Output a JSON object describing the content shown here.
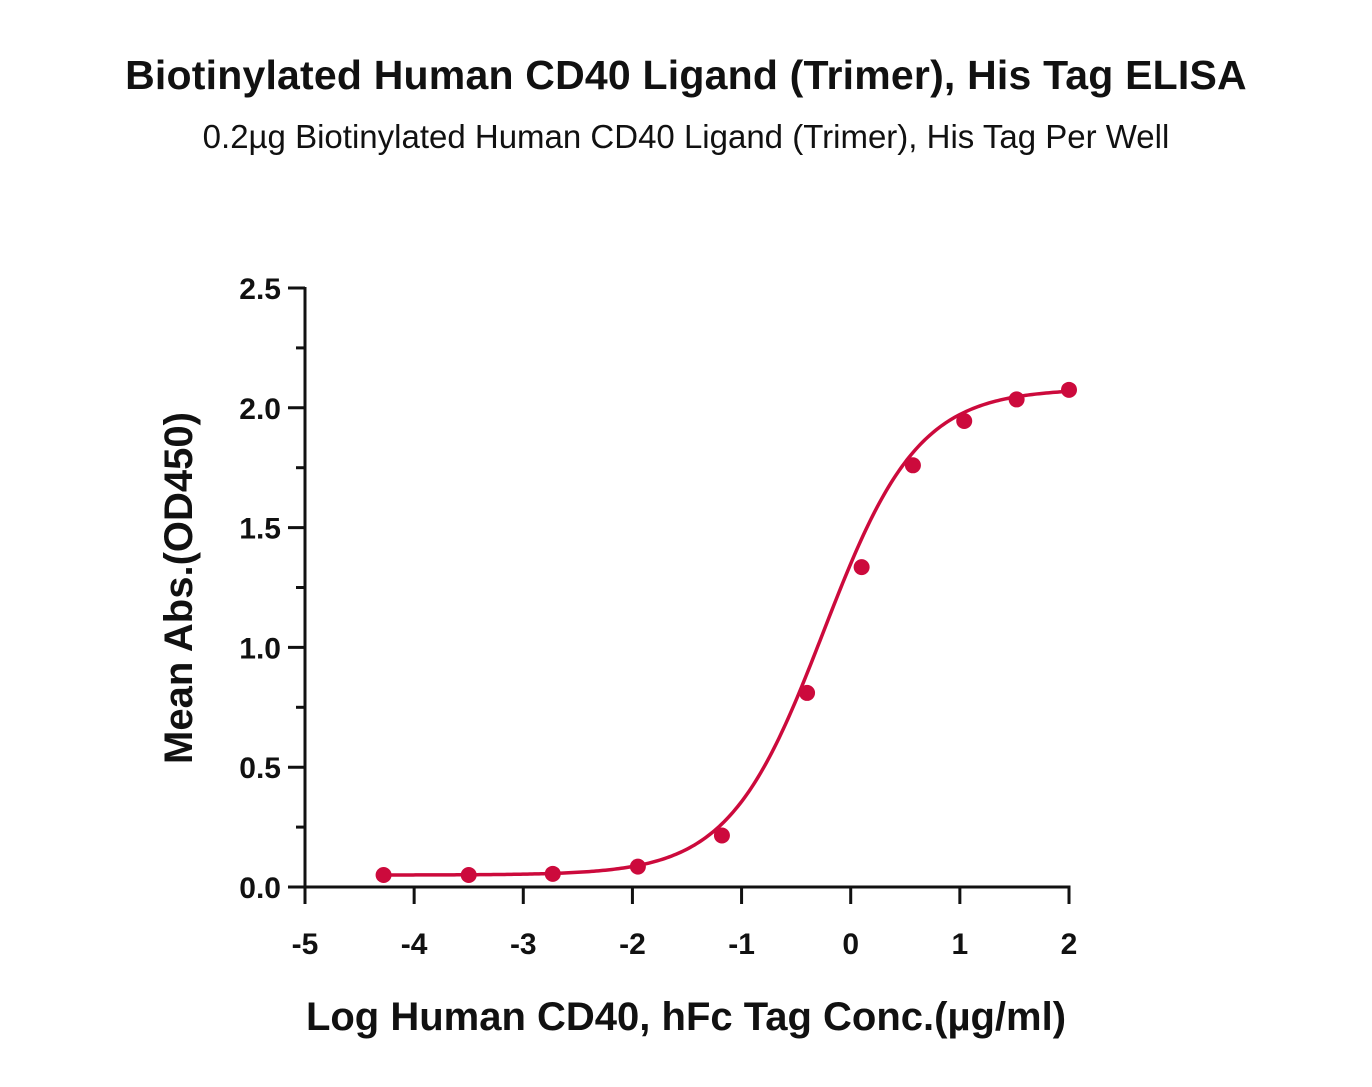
{
  "chart_data": {
    "type": "scatter",
    "title": "Biotinylated Human CD40 Ligand (Trimer), His Tag ELISA",
    "subtitle": "0.2µg Biotinylated Human CD40 Ligand (Trimer), His Tag Per Well",
    "xlabel": "Log Human CD40, hFc Tag Conc.(µg/ml)",
    "ylabel": "Mean Abs.(OD450)",
    "xlim": [
      -5,
      2
    ],
    "ylim": [
      0,
      2.5
    ],
    "x_ticks": [
      -5,
      -4,
      -3,
      -2,
      -1,
      0,
      1,
      2
    ],
    "x_tick_labels": [
      "-5",
      "-4",
      "-3",
      "-2",
      "-1",
      "0",
      "1",
      "2"
    ],
    "y_ticks": [
      0,
      0.5,
      1.0,
      1.5,
      2.0,
      2.5
    ],
    "y_tick_labels": [
      "0.0",
      "0.5",
      "1.0",
      "1.5",
      "2.0",
      "2.5"
    ],
    "grid": false,
    "series": [
      {
        "color": "#cc0a3c",
        "x": [
          -4.28,
          -3.5,
          -2.73,
          -1.95,
          -1.18,
          -0.4,
          0.1,
          0.57,
          1.04,
          1.52,
          2.0
        ],
        "values": [
          0.05,
          0.05,
          0.055,
          0.085,
          0.215,
          0.81,
          1.335,
          1.76,
          1.945,
          2.035,
          2.075
        ],
        "fit": "4PL sigmoid"
      }
    ]
  }
}
